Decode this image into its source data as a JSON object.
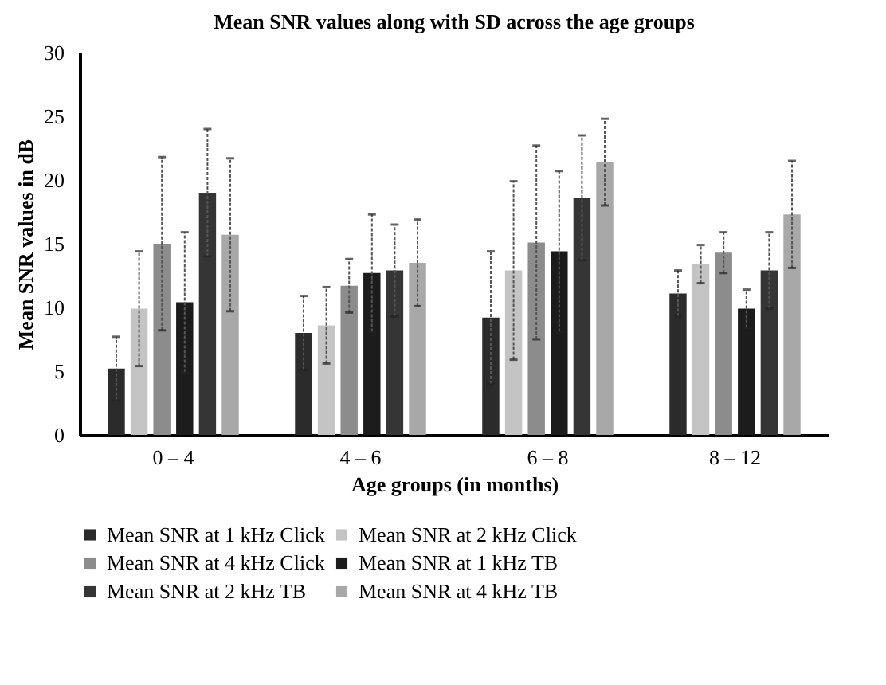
{
  "chart_data": {
    "type": "bar",
    "title": "Mean SNR values along with SD across the age groups",
    "xlabel": "Age groups (in months)",
    "ylabel": "Mean SNR values in dB",
    "categories": [
      "0 – 4",
      "4 – 6",
      "6 – 8",
      "8 – 12"
    ],
    "series": [
      {
        "name": "Mean SNR at 1 kHz Click",
        "color": "#2b2b2b",
        "values": [
          5.2,
          8.0,
          9.2,
          11.1
        ],
        "errors": [
          2.5,
          2.9,
          5.2,
          1.8
        ]
      },
      {
        "name": "Mean SNR at 2 kHz Click",
        "color": "#c4c4c4",
        "values": [
          9.9,
          8.6,
          12.9,
          13.4
        ],
        "errors": [
          4.5,
          3.0,
          7.0,
          1.5
        ]
      },
      {
        "name": "Mean SNR at 4 kHz Click",
        "color": "#8c8c8c",
        "values": [
          15.0,
          11.7,
          15.1,
          14.3
        ],
        "errors": [
          6.8,
          2.1,
          7.6,
          1.6
        ]
      },
      {
        "name": "Mean SNR at 1 kHz TB",
        "color": "#1c1c1c",
        "values": [
          10.4,
          12.7,
          14.4,
          9.9
        ],
        "errors": [
          5.5,
          4.6,
          6.3,
          1.5
        ]
      },
      {
        "name": "Mean SNR at 2 kHz TB",
        "color": "#353535",
        "values": [
          19.0,
          12.9,
          18.6,
          12.9
        ],
        "errors": [
          5.0,
          3.6,
          4.9,
          3.0
        ]
      },
      {
        "name": "Mean SNR at 4 kHz TB",
        "color": "#a8a8a8",
        "values": [
          15.7,
          13.5,
          21.4,
          17.3
        ],
        "errors": [
          6.0,
          3.4,
          3.4,
          4.2
        ]
      }
    ],
    "ylim": [
      0,
      30
    ],
    "yticks": [
      0,
      5,
      10,
      15,
      20,
      25,
      30
    ],
    "legend": "bottom"
  }
}
